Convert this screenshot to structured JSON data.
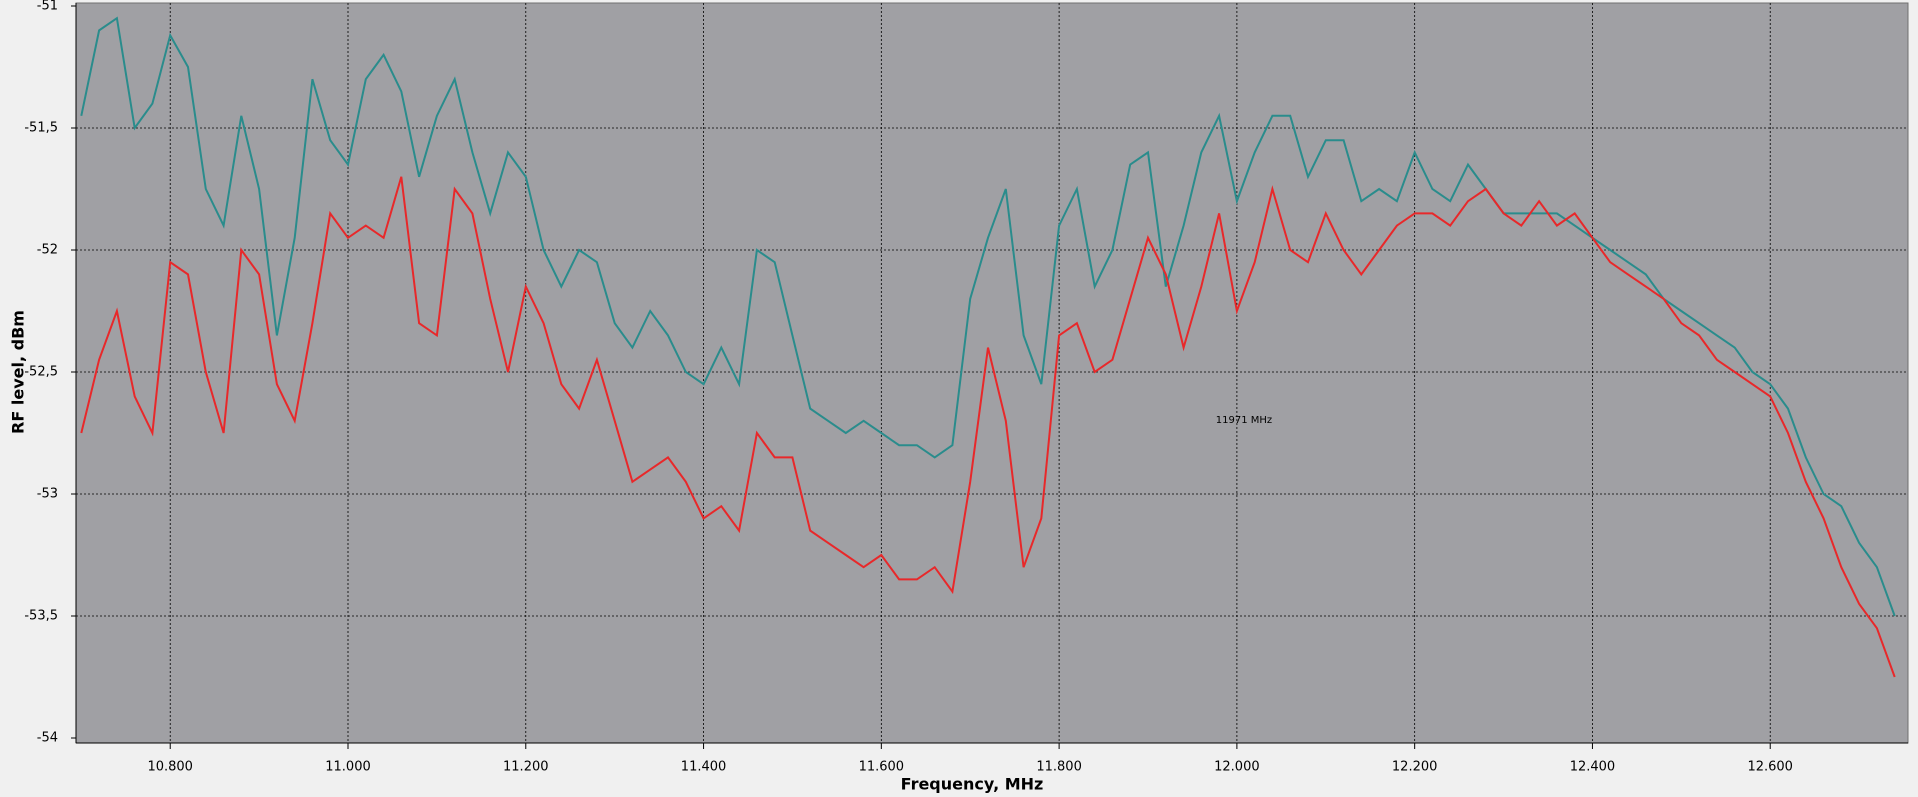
{
  "chart_data": {
    "type": "line",
    "x_label": "Frequency, MHz",
    "y_label": "RF level, dBm",
    "annotation": "11971 MHz",
    "xlim": [
      10.694,
      12.755
    ],
    "ylim": [
      -54,
      -51
    ],
    "xticks": [
      {
        "value": 10.8,
        "label": "10.800"
      },
      {
        "value": 11.0,
        "label": "11.000"
      },
      {
        "value": 11.2,
        "label": "11.200"
      },
      {
        "value": 11.4,
        "label": "11.400"
      },
      {
        "value": 11.6,
        "label": "11.600"
      },
      {
        "value": 11.8,
        "label": "11.800"
      },
      {
        "value": 12.0,
        "label": "12.000"
      },
      {
        "value": 12.2,
        "label": "12.200"
      },
      {
        "value": 12.4,
        "label": "12.400"
      },
      {
        "value": 12.6,
        "label": "12.600"
      }
    ],
    "yticks": [
      -54,
      {
        "value": -53.5,
        "label": "-53,5"
      },
      -53,
      {
        "value": -52.5,
        "label": "-52,5"
      },
      -52,
      {
        "value": -51.5,
        "label": "-51,5"
      },
      -51
    ],
    "grid": true,
    "x": [
      10.7,
      10.72,
      10.74,
      10.76,
      10.78,
      10.8,
      10.82,
      10.84,
      10.86,
      10.88,
      10.9,
      10.92,
      10.94,
      10.96,
      10.98,
      11.0,
      11.02,
      11.04,
      11.06,
      11.08,
      11.1,
      11.12,
      11.14,
      11.16,
      11.18,
      11.2,
      11.22,
      11.24,
      11.26,
      11.28,
      11.3,
      11.32,
      11.34,
      11.36,
      11.38,
      11.4,
      11.42,
      11.44,
      11.46,
      11.48,
      11.5,
      11.52,
      11.54,
      11.56,
      11.58,
      11.6,
      11.62,
      11.64,
      11.66,
      11.68,
      11.7,
      11.72,
      11.74,
      11.76,
      11.78,
      11.8,
      11.82,
      11.84,
      11.86,
      11.88,
      11.9,
      11.92,
      11.94,
      11.96,
      11.98,
      12.0,
      12.02,
      12.04,
      12.06,
      12.08,
      12.1,
      12.12,
      12.14,
      12.16,
      12.18,
      12.2,
      12.22,
      12.24,
      12.26,
      12.28,
      12.3,
      12.32,
      12.34,
      12.36,
      12.38,
      12.4,
      12.42,
      12.44,
      12.46,
      12.48,
      12.5,
      12.52,
      12.54,
      12.56,
      12.58,
      12.6,
      12.62,
      12.64,
      12.66,
      12.68,
      12.7,
      12.72,
      12.74
    ],
    "series": [
      {
        "color": "#2a8c8c",
        "values": [
          -51.45,
          -51.1,
          -51.05,
          -51.5,
          -51.4,
          -51.12,
          -51.25,
          -51.75,
          -51.9,
          -51.45,
          -51.75,
          -52.35,
          -51.95,
          -51.3,
          -51.55,
          -51.65,
          -51.3,
          -51.2,
          -51.35,
          -51.7,
          -51.45,
          -51.3,
          -51.6,
          -51.85,
          -51.6,
          -51.7,
          -52.0,
          -52.15,
          -52.0,
          -52.05,
          -52.3,
          -52.4,
          -52.25,
          -52.35,
          -52.5,
          -52.55,
          -52.4,
          -52.55,
          -52.0,
          -52.05,
          -52.35,
          -52.65,
          -52.7,
          -52.75,
          -52.7,
          -52.75,
          -52.8,
          -52.8,
          -52.85,
          -52.8,
          -52.2,
          -51.95,
          -51.75,
          -52.35,
          -52.55,
          -51.9,
          -51.75,
          -52.15,
          -52.0,
          -51.65,
          -51.6,
          -52.15,
          -51.9,
          -51.6,
          -51.45,
          -51.8,
          -51.6,
          -51.45,
          -51.45,
          -51.7,
          -51.55,
          -51.55,
          -51.8,
          -51.75,
          -51.8,
          -51.6,
          -51.75,
          -51.8,
          -51.65,
          -51.75,
          -51.85,
          -51.85,
          -51.85,
          -51.85,
          -51.9,
          -51.95,
          -52.0,
          -52.05,
          -52.1,
          -52.2,
          -52.25,
          -52.3,
          -52.35,
          -52.4,
          -52.5,
          -52.55,
          -52.65,
          -52.85,
          -53.0,
          -53.05,
          -53.2,
          -53.3,
          -53.5
        ]
      },
      {
        "color": "#e8282a",
        "values": [
          -52.75,
          -52.45,
          -52.25,
          -52.6,
          -52.75,
          -52.05,
          -52.1,
          -52.5,
          -52.75,
          -52.0,
          -52.1,
          -52.55,
          -52.7,
          -52.3,
          -51.85,
          -51.95,
          -51.9,
          -51.95,
          -51.7,
          -52.3,
          -52.35,
          -51.75,
          -51.85,
          -52.2,
          -52.5,
          -52.15,
          -52.3,
          -52.55,
          -52.65,
          -52.45,
          -52.7,
          -52.95,
          -52.9,
          -52.85,
          -52.95,
          -53.1,
          -53.05,
          -53.15,
          -52.75,
          -52.85,
          -52.85,
          -53.15,
          -53.2,
          -53.25,
          -53.3,
          -53.25,
          -53.35,
          -53.35,
          -53.3,
          -53.4,
          -52.95,
          -52.4,
          -52.7,
          -53.3,
          -53.1,
          -52.35,
          -52.3,
          -52.5,
          -52.45,
          -52.2,
          -51.95,
          -52.1,
          -52.4,
          -52.15,
          -51.85,
          -52.25,
          -52.05,
          -51.75,
          -52.0,
          -52.05,
          -51.85,
          -52.0,
          -52.1,
          -52.0,
          -51.9,
          -51.85,
          -51.85,
          -51.9,
          -51.8,
          -51.75,
          -51.85,
          -51.9,
          -51.8,
          -51.9,
          -51.85,
          -51.95,
          -52.05,
          -52.1,
          -52.15,
          -52.2,
          -52.3,
          -52.35,
          -52.45,
          -52.5,
          -52.55,
          -52.6,
          -52.75,
          -52.95,
          -53.1,
          -53.3,
          -53.45,
          -53.55,
          -53.75
        ]
      }
    ]
  }
}
